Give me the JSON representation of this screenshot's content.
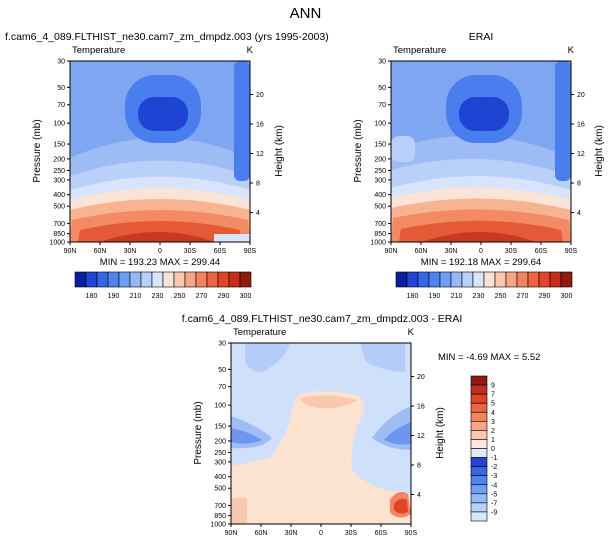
{
  "figure": {
    "title": "ANN"
  },
  "colors": {
    "fill_blues": [
      "#0a1f9e",
      "#1f44d6",
      "#3466e8",
      "#4f83f0",
      "#6f9ef5",
      "#93b9f7",
      "#b8d1f8",
      "#d8e6fb"
    ],
    "fill_reds": [
      "#fbe3d6",
      "#f9c7ad",
      "#f7a685",
      "#f3845f",
      "#ee6440",
      "#e04527",
      "#c42e1a",
      "#8e1a10"
    ],
    "panel_bg": "#7fa7f1",
    "diff_bg": "#cfe0fb",
    "diff_warm": "#fbe3d0",
    "diff_hot": "#e8502c"
  },
  "chart_data": [
    {
      "type": "heatmap",
      "panel": "model",
      "title": "f.cam6_4_089.FLTHIST_ne30.cam7_zm_dmpdz.003 (yrs 1995-2003)",
      "variable_label": "Temperature",
      "units": "K",
      "ylabel": "Pressure (mb)",
      "ylabel_right": "Height (km)",
      "x_ticks": [
        "90N",
        "60N",
        "30N",
        "0",
        "30S",
        "60S",
        "90S"
      ],
      "y_ticks": [
        "30",
        "50",
        "70",
        "100",
        "150",
        "200",
        "250",
        "300",
        "400",
        "500",
        "700",
        "850",
        "1000"
      ],
      "y_ticks_right": [
        "20",
        "16",
        "12",
        "8",
        "4"
      ],
      "stats": "MIN = 193.23   MAX = 299.44",
      "colorbar_labels": [
        "180",
        "190",
        "210",
        "230",
        "250",
        "270",
        "290",
        "300"
      ]
    },
    {
      "type": "heatmap",
      "panel": "reference",
      "title": "ERAI",
      "variable_label": "Temperature",
      "units": "K",
      "ylabel": "Pressure (mb)",
      "ylabel_right": "Height (km)",
      "x_ticks": [
        "90N",
        "60N",
        "30N",
        "0",
        "30S",
        "60S",
        "90S"
      ],
      "y_ticks": [
        "30",
        "50",
        "70",
        "100",
        "150",
        "200",
        "250",
        "300",
        "400",
        "500",
        "700",
        "850",
        "1000"
      ],
      "y_ticks_right": [
        "20",
        "16",
        "12",
        "8",
        "4"
      ],
      "stats": "MIN = 192.18   MAX = 299.64",
      "colorbar_labels": [
        "180",
        "190",
        "210",
        "230",
        "250",
        "270",
        "290",
        "300"
      ]
    },
    {
      "type": "heatmap",
      "panel": "difference",
      "title": "f.cam6_4_089.FLTHIST_ne30.cam7_zm_dmpdz.003 - ERAI",
      "variable_label": "Temperature",
      "units": "K",
      "ylabel": "Pressure (mb)",
      "ylabel_right": "Height (km)",
      "x_ticks": [
        "90N",
        "60N",
        "30N",
        "0",
        "30S",
        "60S",
        "90S"
      ],
      "y_ticks": [
        "30",
        "50",
        "70",
        "100",
        "150",
        "200",
        "250",
        "300",
        "400",
        "500",
        "700",
        "850",
        "1000"
      ],
      "y_ticks_right": [
        "20",
        "16",
        "12",
        "8",
        "4"
      ],
      "stats": "MIN = -4.69   MAX =  5.52",
      "colorbar_labels": [
        "9",
        "7",
        "5",
        "4",
        "3",
        "2",
        "1",
        "0",
        "-1",
        "-2",
        "-3",
        "-4",
        "-5",
        "-7",
        "-9"
      ]
    }
  ]
}
